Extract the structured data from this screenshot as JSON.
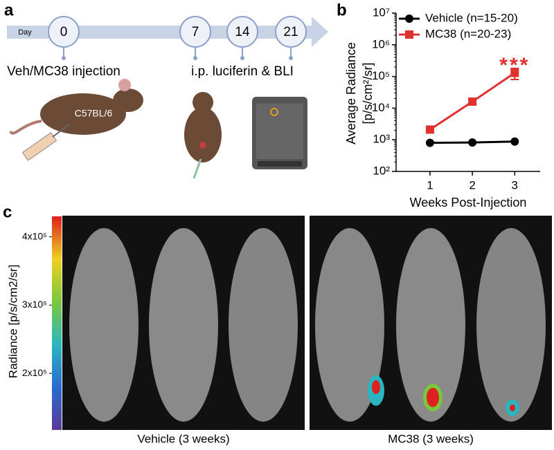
{
  "panel_a": {
    "label": "a",
    "timeline_unit": "Day",
    "days": [
      "0",
      "7",
      "14",
      "21"
    ],
    "event_1": "Veh/MC38 injection",
    "event_2": "i.p. luciferin & BLI",
    "strain": "C57BL/6"
  },
  "chart_data": {
    "type": "line",
    "panel_label": "b",
    "y_label": [
      "Average Radiance",
      "[p/s/cm²/sr]"
    ],
    "x_label": "Weeks Post-Injection",
    "x": [
      1,
      2,
      3
    ],
    "xlim": [
      0.2,
      3.6
    ],
    "xticks": [
      1,
      2,
      3
    ],
    "log_y": true,
    "ylim": [
      100,
      10000000
    ],
    "yticks": [
      {
        "value": 100,
        "label": "10²"
      },
      {
        "value": 1000,
        "label": "10³"
      },
      {
        "value": 10000,
        "label": "10⁴"
      },
      {
        "value": 100000,
        "label": "10⁵"
      },
      {
        "value": 1000000,
        "label": "10⁶"
      },
      {
        "value": 10000000,
        "label": "10⁷"
      }
    ],
    "legend": "top-right",
    "series": [
      {
        "name": "Vehicle (n=15-20)",
        "color": "#000000",
        "marker": "circle",
        "values": [
          800,
          820,
          880
        ]
      },
      {
        "name": "MC38 (n=20-23)",
        "color": "#e0312f",
        "marker": "square",
        "values": [
          2100,
          16000,
          130000
        ],
        "errors": [
          300,
          2000,
          50000
        ]
      }
    ],
    "annotation": {
      "text": "***",
      "x": 3,
      "color": "#e0312f"
    }
  },
  "panel_c": {
    "label": "c",
    "colorbar_label": "Radiance [p/s/cm2/sr]",
    "clim": [
      117000,
      430000
    ],
    "colorbar_ticks": [
      {
        "value": 400000,
        "label": "4x10⁵"
      },
      {
        "value": 300000,
        "label": "3x10⁵"
      },
      {
        "value": 200000,
        "label": "2x10⁵"
      }
    ],
    "captions": [
      "Vehicle (3 weeks)",
      "MC38 (3 weeks)"
    ]
  }
}
